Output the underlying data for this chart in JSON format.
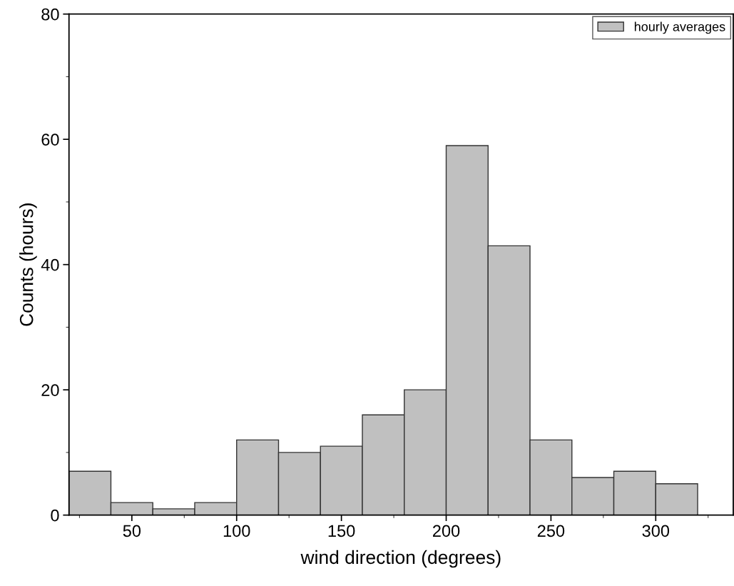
{
  "chart_data": {
    "type": "histogram",
    "xlabel": "wind direction (degrees)",
    "ylabel": "Counts (hours)",
    "bins": [
      20,
      40,
      60,
      80,
      100,
      120,
      140,
      160,
      180,
      200,
      220,
      240,
      260,
      280,
      300,
      320
    ],
    "series": [
      {
        "name": "hourly averages",
        "color": "#c0c0c0",
        "values": [
          7,
          2,
          1,
          2,
          12,
          10,
          11,
          16,
          20,
          59,
          43,
          12,
          6,
          7,
          5
        ]
      }
    ],
    "xlim": [
      20,
      337
    ],
    "ylim": [
      0,
      80
    ],
    "xticks": [
      50,
      100,
      150,
      200,
      250,
      300
    ],
    "yticks": [
      0,
      20,
      40,
      60,
      80
    ],
    "legend": "top right",
    "grid": false
  }
}
